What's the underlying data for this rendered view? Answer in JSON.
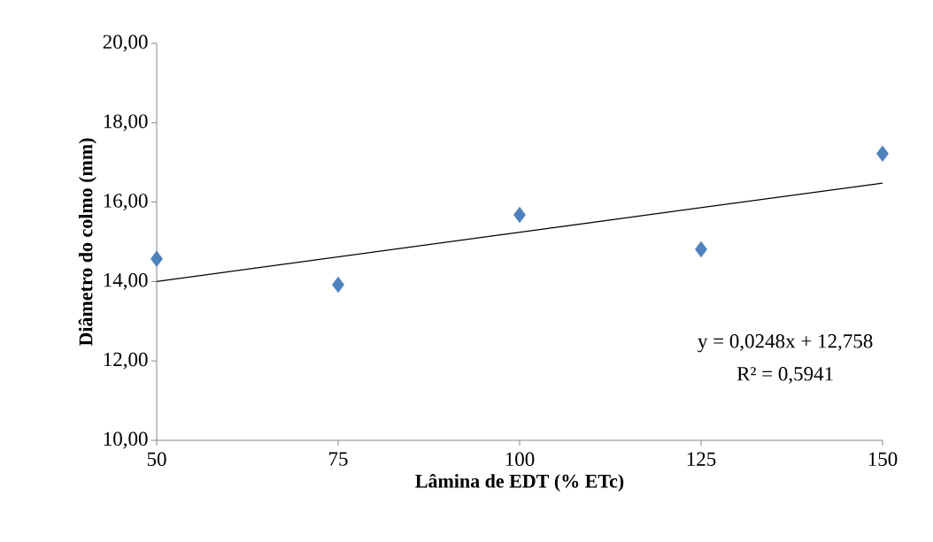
{
  "chart_data": {
    "type": "scatter",
    "xlabel": "Lâmina de EDT (% ETc)",
    "ylabel": "Diâmetro do colmo (mm)",
    "x": [
      50,
      75,
      100,
      125,
      150
    ],
    "series": [
      {
        "color": "#4f81bd",
        "marker": "diamond",
        "values": [
          14.57,
          13.92,
          15.68,
          14.81,
          17.22
        ]
      },
      {
        "type": "line",
        "color": "#000000",
        "x": [
          50,
          150
        ],
        "values": [
          14.0,
          16.48
        ]
      }
    ],
    "xlim": [
      50,
      150
    ],
    "xticks": [
      50,
      75,
      100,
      125,
      150
    ],
    "ylim": [
      10,
      20
    ],
    "yticks": [
      {
        "value": 10,
        "label": "10,00"
      },
      {
        "value": 12,
        "label": "12,00"
      },
      {
        "value": 14,
        "label": "14,00"
      },
      {
        "value": 16,
        "label": "16,00"
      },
      {
        "value": 18,
        "label": "18,00"
      },
      {
        "value": 20,
        "label": "20,00"
      }
    ],
    "annotations": [
      "y = 0,0248x + 12,758",
      "R² = 0,5941"
    ]
  }
}
